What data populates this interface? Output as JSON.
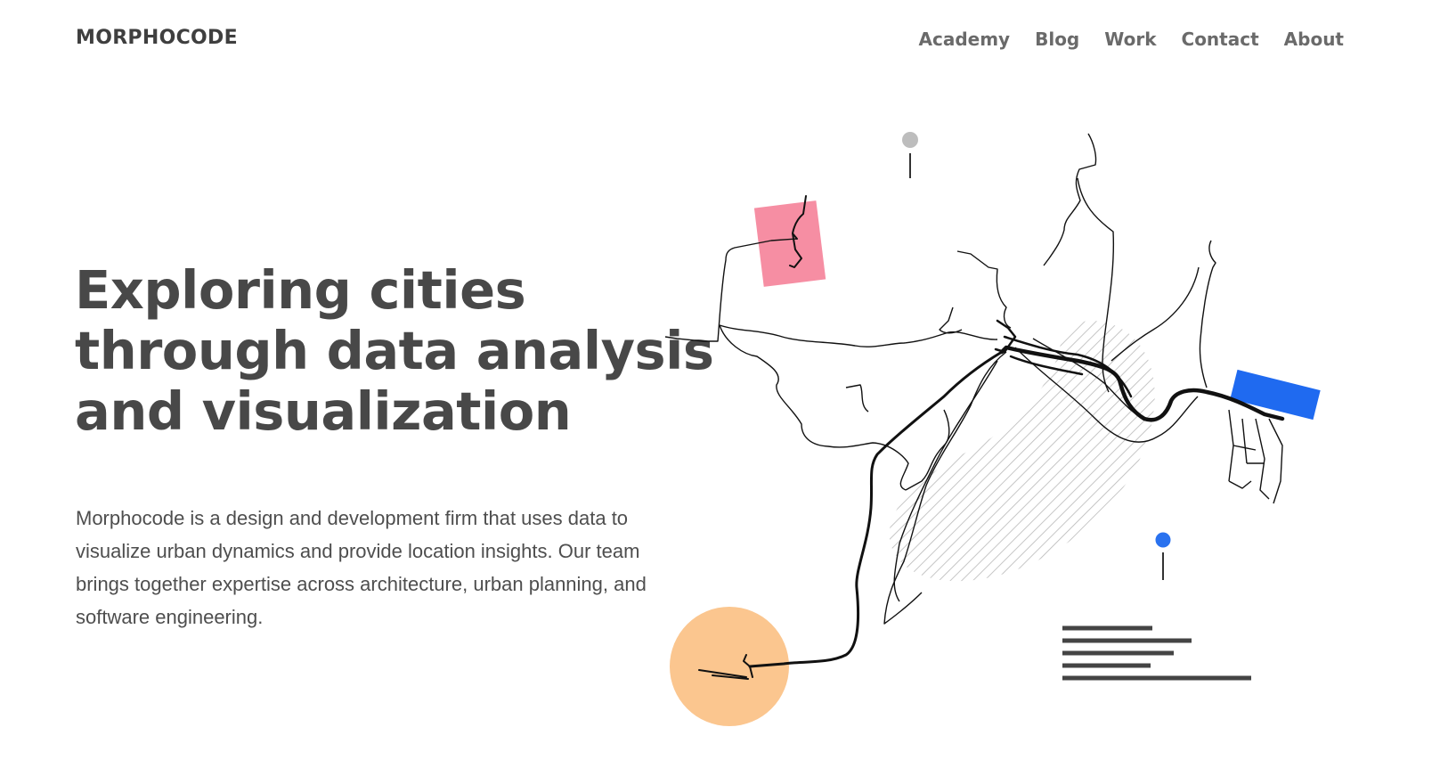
{
  "header": {
    "logo": "MORPHOCODE",
    "nav": [
      "Academy",
      "Blog",
      "Work",
      "Contact",
      "About"
    ]
  },
  "hero": {
    "title_lines": [
      "Exploring cities",
      "through data analysis",
      "and visualization"
    ],
    "description": "Morphocode is a design and development firm that uses data to visualize urban dynamics and provide location insights. Our team brings together expertise across architecture, urban planning, and software engineering."
  },
  "illustration": {
    "colors": {
      "pink": "#f68ea3",
      "blue": "#1f6af0",
      "orange": "#fbc68f",
      "gray_pin": "#bdbdbd",
      "blue_pin": "#2a72ef",
      "ink": "#111111",
      "bars": "#444444",
      "hatch": "#b8b8b8"
    }
  }
}
